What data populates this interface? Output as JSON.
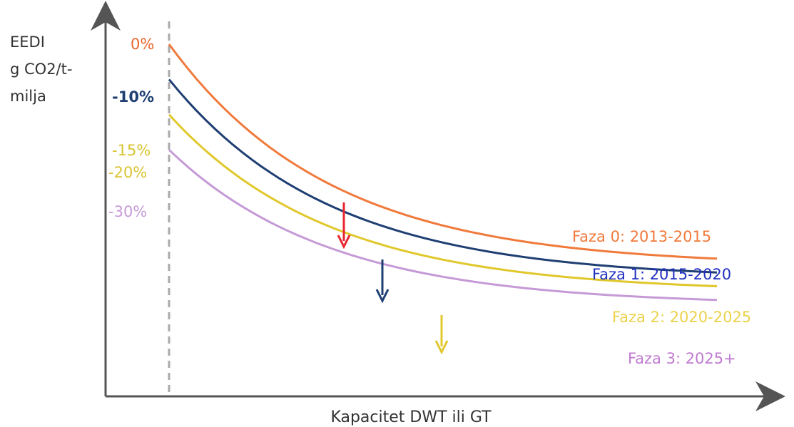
{
  "chart_data": {
    "type": "line",
    "title": "",
    "ylabel": "EEDI g CO2/t-milja",
    "ylabel_lines": [
      "EEDI",
      "g CO2/t-",
      "milja"
    ],
    "xlabel": "Kapacitet DWT ili GT",
    "grid": false,
    "series": [
      {
        "name": "Faza 0: 2013-2015",
        "reduction": "0%",
        "color": "#f07a3c",
        "relative_level": 1.0
      },
      {
        "name": "Faza 1: 2015-2020",
        "reduction": "-10%",
        "color": "#1f3f73",
        "relative_level": 0.9
      },
      {
        "name": "Faza 2: 2020-2025",
        "reduction": "-15%",
        "reduction_alt": "-20%",
        "color": "#e0c82c",
        "relative_level": 0.8
      },
      {
        "name": "Faza 3: 2025+",
        "reduction": "-30%",
        "color": "#c59ad6",
        "relative_level": 0.7
      }
    ],
    "arrow_colors": [
      "#e8252f",
      "#1f3f73",
      "#e0c82c"
    ],
    "phase_label_colors": [
      "#f07a3c",
      "#2130c0",
      "#ecd24a",
      "#c07ad0"
    ],
    "reduction_label_colors": [
      "#e8652c",
      "#1f3f73",
      "#d9c431",
      "#d9c431",
      "#c59ad6"
    ]
  }
}
